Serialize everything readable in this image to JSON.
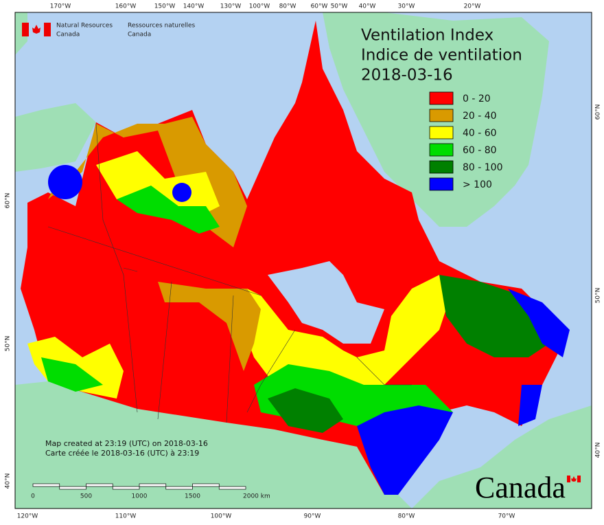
{
  "header": {
    "org_en": "Natural Resources",
    "org_en2": "Canada",
    "org_fr": "Ressources naturelles",
    "org_fr2": "Canada"
  },
  "title": {
    "line1": "Ventilation Index",
    "line2": "Indice de ventilation",
    "date": "2018-03-16"
  },
  "legend": [
    {
      "label": "0 - 20",
      "color": "#ff0000"
    },
    {
      "label": "20 - 40",
      "color": "#d99a00"
    },
    {
      "label": "40 - 60",
      "color": "#ffff00"
    },
    {
      "label": "60 - 80",
      "color": "#00dd00"
    },
    {
      "label": "80 - 100",
      "color": "#008000"
    },
    {
      "label": "> 100",
      "color": "#0000ff"
    }
  ],
  "graticule": {
    "top": [
      "170°W",
      "160°W",
      "150°W",
      "140°W",
      "130°W",
      "100°W",
      "80°W",
      "60°W",
      "50°W",
      "40°W",
      "30°W",
      "20°W"
    ],
    "bottom": [
      "120°W",
      "110°W",
      "100°W",
      "90°W",
      "80°W",
      "70°W"
    ],
    "left": [
      "60°N",
      "50°N",
      "40°N"
    ],
    "right": [
      "60°N",
      "50°N",
      "40°N"
    ]
  },
  "scale_bar": [
    "0",
    "500",
    "1000",
    "1500",
    "2000 km"
  ],
  "notes": {
    "line1": "Map created at 23:19 (UTC) on 2018-03-16",
    "line2": "Carte créée le 2018-03-16 (UTC) à 23:19"
  },
  "wordmark": "Canada"
}
